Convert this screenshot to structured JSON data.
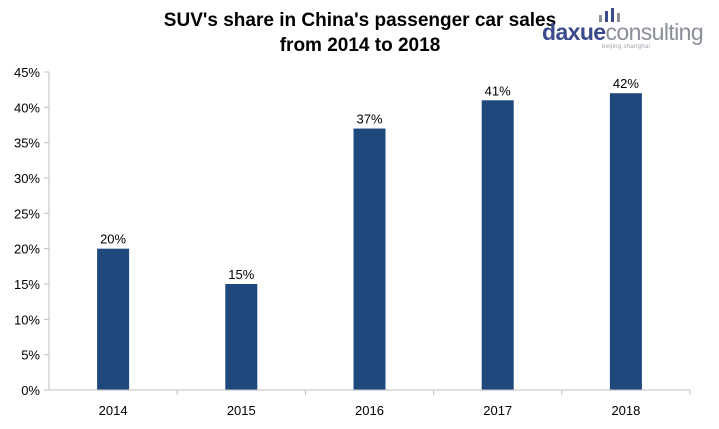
{
  "title_line1": "SUV's share in China's passenger car sales",
  "title_line2": "from 2014 to 2018",
  "logo": {
    "brand_part1": "daxue",
    "brand_part2": "consulting",
    "tagline": "beijing shanghai",
    "colors": {
      "primary": "#3a4a8c",
      "secondary": "#8a8f99"
    }
  },
  "chart_data": {
    "type": "bar",
    "categories": [
      "2014",
      "2015",
      "2016",
      "2017",
      "2018"
    ],
    "values": [
      20,
      15,
      37,
      41,
      42
    ],
    "data_labels": [
      "20%",
      "15%",
      "37%",
      "41%",
      "42%"
    ],
    "yticks": [
      0,
      5,
      10,
      15,
      20,
      25,
      30,
      35,
      40,
      45
    ],
    "ytick_labels": [
      "0%",
      "5%",
      "10%",
      "15%",
      "20%",
      "25%",
      "30%",
      "35%",
      "40%",
      "45%"
    ],
    "ylim": [
      0,
      45
    ],
    "xlabel": "",
    "ylabel": "",
    "grid": false,
    "legend": "none",
    "bar_color": "#1f497d"
  }
}
